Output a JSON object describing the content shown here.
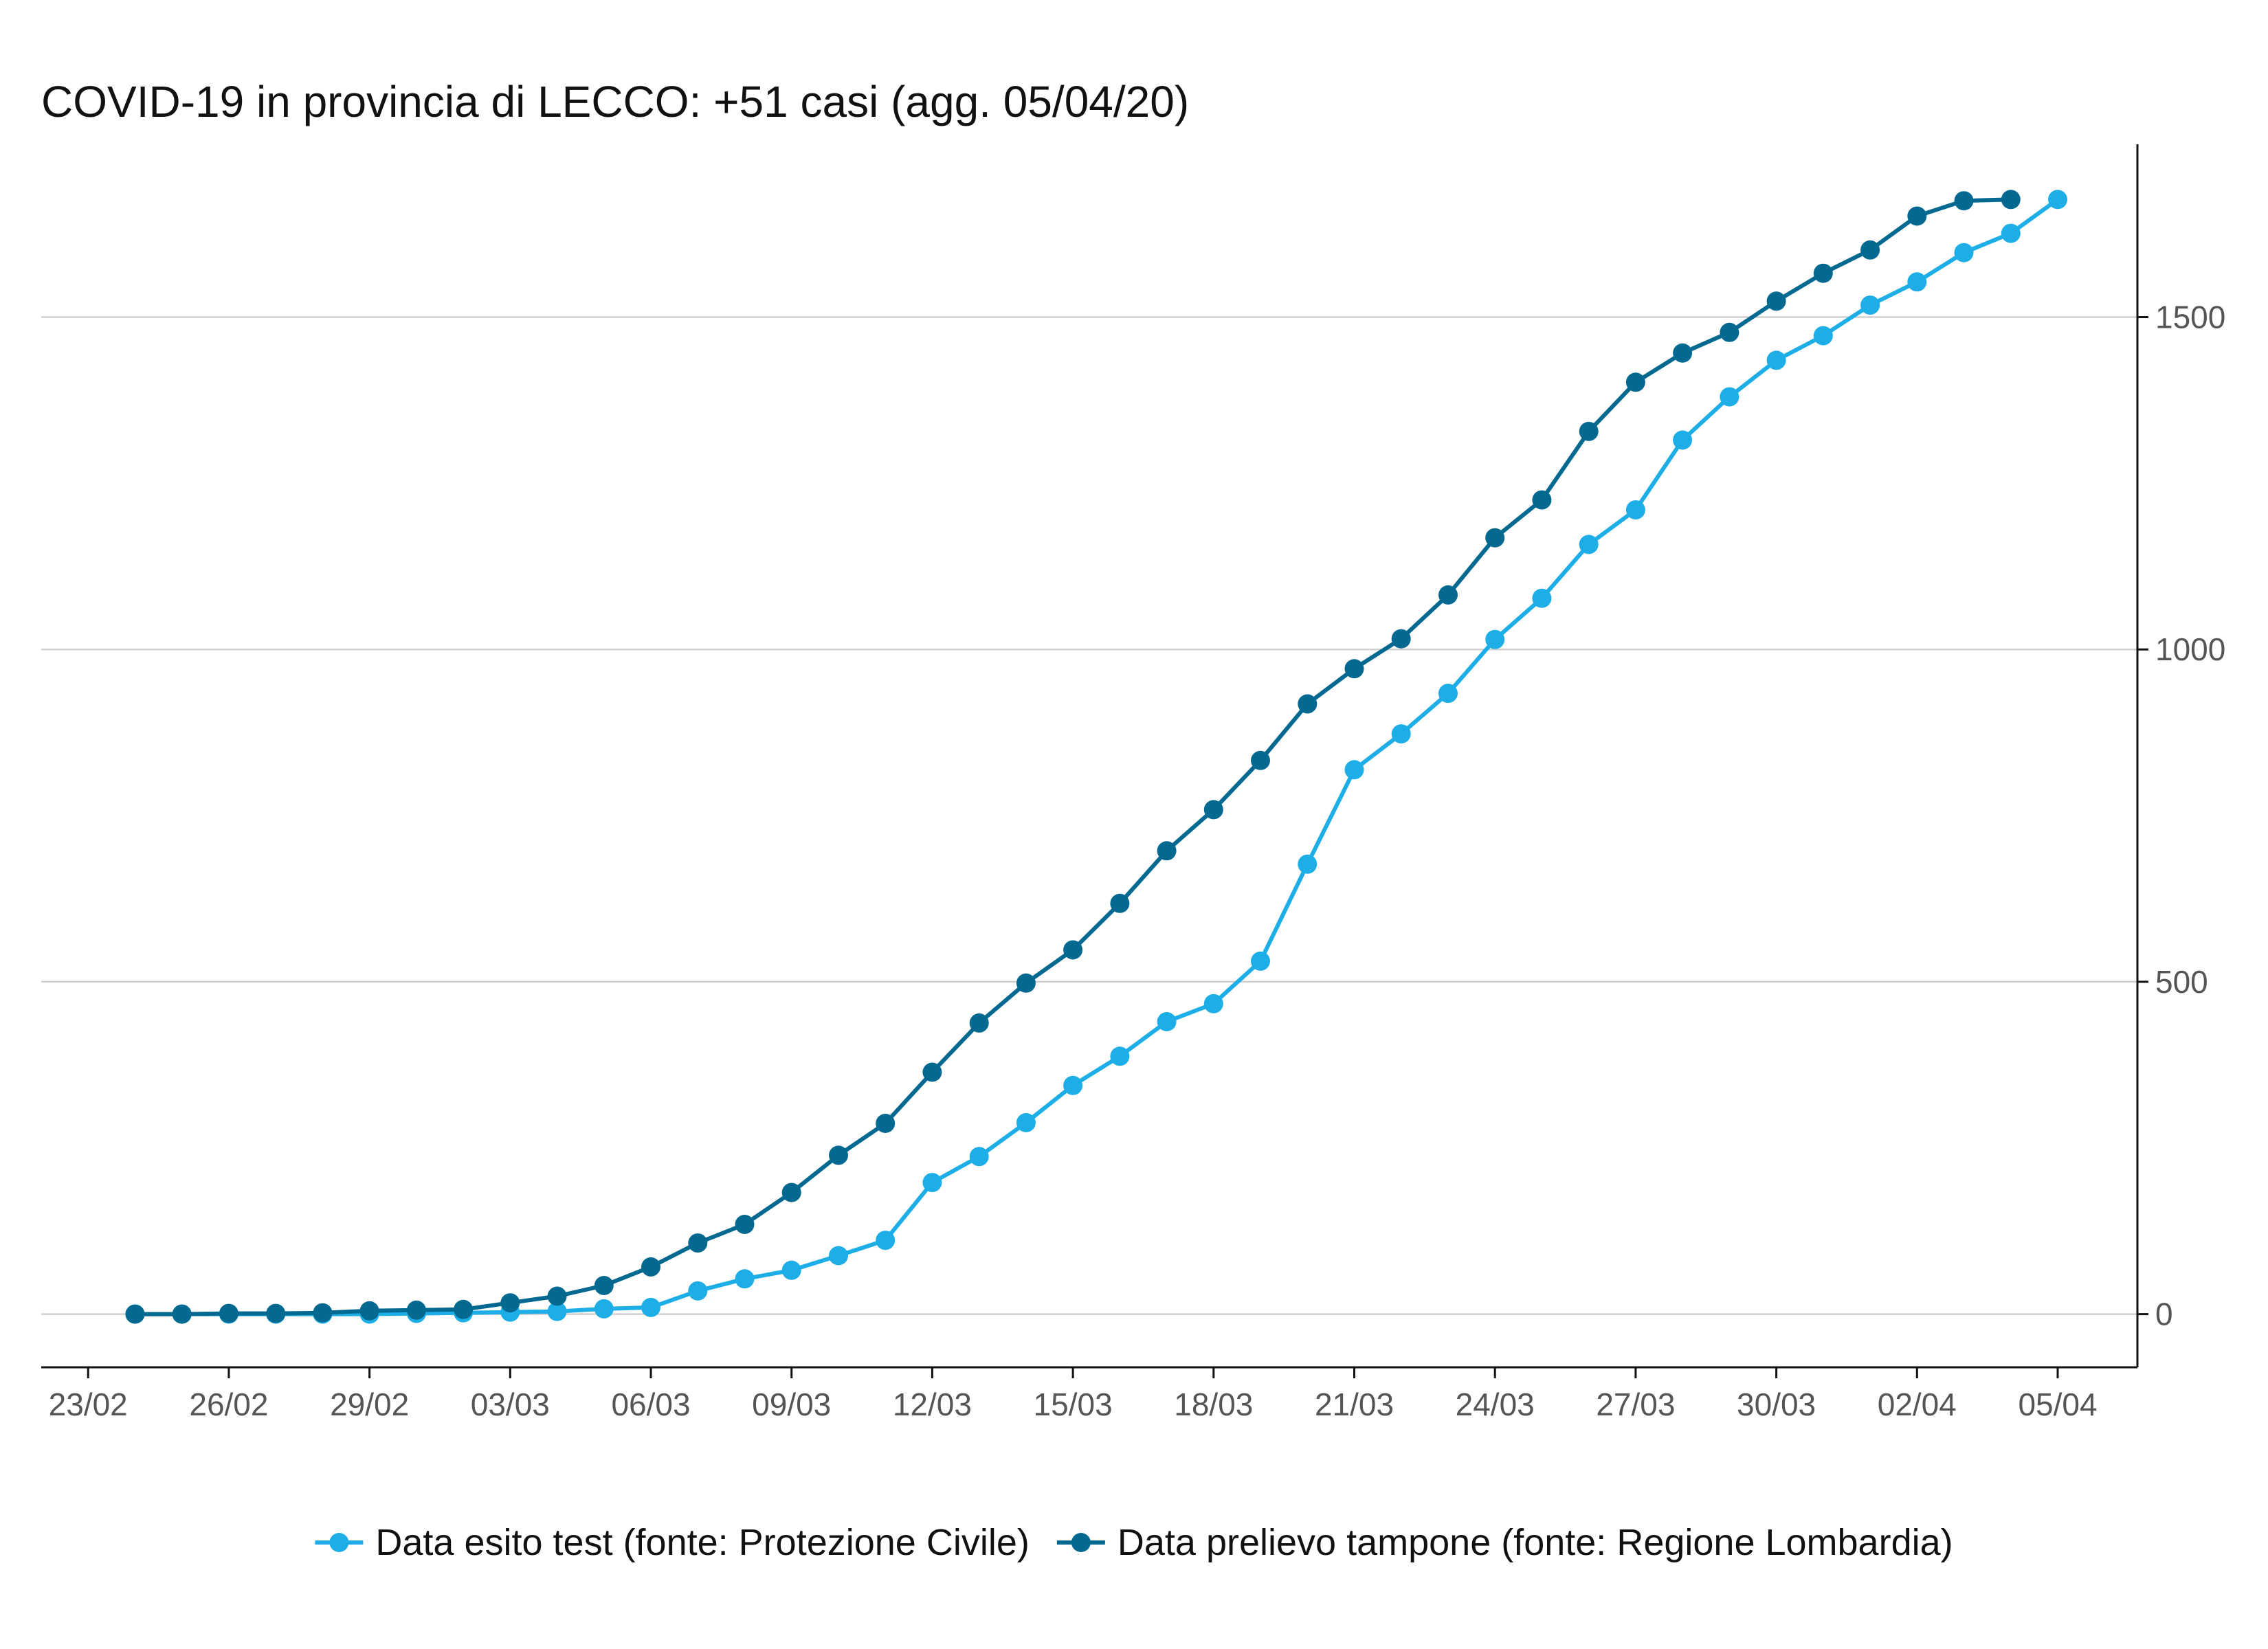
{
  "chart_data": {
    "type": "line",
    "title": "COVID-19 in provincia di LECCO: +51 casi (agg. 05/04/20)",
    "xlabel": "",
    "ylabel": "",
    "x_axis": {
      "type": "date",
      "range": [
        "2020-02-23",
        "2020-04-05"
      ],
      "ticks": [
        {
          "date": "2020-02-23",
          "label": "23/02"
        },
        {
          "date": "2020-02-26",
          "label": "26/02"
        },
        {
          "date": "2020-02-29",
          "label": "29/02"
        },
        {
          "date": "2020-03-03",
          "label": "03/03"
        },
        {
          "date": "2020-03-06",
          "label": "06/03"
        },
        {
          "date": "2020-03-09",
          "label": "09/03"
        },
        {
          "date": "2020-03-12",
          "label": "12/03"
        },
        {
          "date": "2020-03-15",
          "label": "15/03"
        },
        {
          "date": "2020-03-18",
          "label": "18/03"
        },
        {
          "date": "2020-03-21",
          "label": "21/03"
        },
        {
          "date": "2020-03-24",
          "label": "24/03"
        },
        {
          "date": "2020-03-27",
          "label": "27/03"
        },
        {
          "date": "2020-03-30",
          "label": "30/03"
        },
        {
          "date": "2020-04-02",
          "label": "02/04"
        },
        {
          "date": "2020-04-05",
          "label": "05/04"
        }
      ]
    },
    "y_axis": {
      "position": "right",
      "ylim": [
        -80,
        1760
      ],
      "ticks": [
        0,
        500,
        1000,
        1500
      ],
      "tick_labels": [
        "0",
        "500",
        "1000",
        "1500"
      ]
    },
    "grid": "horizontal",
    "legend": {
      "placement": "bottom"
    },
    "series": [
      {
        "name": "Data esito test (fonte: Protezione Civile)",
        "color": "#1eaee7",
        "x": [
          "2020-02-24",
          "2020-02-25",
          "2020-02-26",
          "2020-02-27",
          "2020-02-28",
          "2020-02-29",
          "2020-03-01",
          "2020-03-02",
          "2020-03-03",
          "2020-03-04",
          "2020-03-05",
          "2020-03-06",
          "2020-03-07",
          "2020-03-08",
          "2020-03-09",
          "2020-03-10",
          "2020-03-11",
          "2020-03-12",
          "2020-03-13",
          "2020-03-14",
          "2020-03-15",
          "2020-03-16",
          "2020-03-17",
          "2020-03-18",
          "2020-03-19",
          "2020-03-20",
          "2020-03-21",
          "2020-03-22",
          "2020-03-23",
          "2020-03-24",
          "2020-03-25",
          "2020-03-26",
          "2020-03-27",
          "2020-03-28",
          "2020-03-29",
          "2020-03-30",
          "2020-03-31",
          "2020-04-01",
          "2020-04-02",
          "2020-04-03",
          "2020-04-04",
          "2020-04-05"
        ],
        "y": [
          0,
          0,
          0,
          0,
          0,
          0,
          1,
          2,
          3,
          4,
          8,
          10,
          35,
          53,
          66,
          88,
          111,
          198,
          237,
          288,
          344,
          388,
          440,
          467,
          531,
          677,
          819,
          873,
          934,
          1015,
          1077,
          1158,
          1210,
          1315,
          1380,
          1435,
          1472,
          1518,
          1553,
          1597,
          1626,
          1677
        ]
      },
      {
        "name": "Data prelievo tampone (fonte: Regione Lombardia)",
        "color": "#036990",
        "x": [
          "2020-02-24",
          "2020-02-25",
          "2020-02-26",
          "2020-02-27",
          "2020-02-28",
          "2020-02-29",
          "2020-03-01",
          "2020-03-02",
          "2020-03-03",
          "2020-03-04",
          "2020-03-05",
          "2020-03-06",
          "2020-03-07",
          "2020-03-08",
          "2020-03-09",
          "2020-03-10",
          "2020-03-11",
          "2020-03-12",
          "2020-03-13",
          "2020-03-14",
          "2020-03-15",
          "2020-03-16",
          "2020-03-17",
          "2020-03-18",
          "2020-03-19",
          "2020-03-20",
          "2020-03-21",
          "2020-03-22",
          "2020-03-23",
          "2020-03-24",
          "2020-03-25",
          "2020-03-26",
          "2020-03-27",
          "2020-03-28",
          "2020-03-29",
          "2020-03-30",
          "2020-03-31",
          "2020-04-01",
          "2020-04-02",
          "2020-04-03",
          "2020-04-04"
        ],
        "y": [
          0,
          0,
          1,
          1,
          2,
          5,
          6,
          7,
          17,
          27,
          43,
          71,
          107,
          135,
          183,
          239,
          287,
          364,
          438,
          498,
          548,
          618,
          697,
          759,
          833,
          918,
          971,
          1016,
          1082,
          1168,
          1225,
          1328,
          1402,
          1446,
          1477,
          1524,
          1566,
          1601,
          1652,
          1675,
          1677
        ]
      }
    ]
  }
}
